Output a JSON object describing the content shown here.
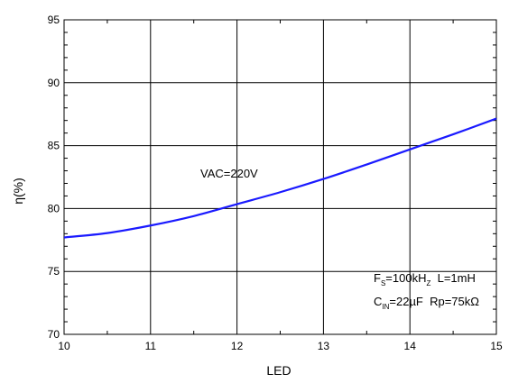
{
  "chart_data": {
    "type": "line",
    "title": "",
    "xlabel": "LED",
    "ylabel": "η(%)",
    "xlim": [
      10,
      15
    ],
    "ylim": [
      70,
      95
    ],
    "x_ticks": [
      "10",
      "11",
      "12",
      "13",
      "14",
      "15"
    ],
    "y_ticks": [
      "70",
      "75",
      "80",
      "85",
      "90",
      "95"
    ],
    "grid": true,
    "series": [
      {
        "color": "#1a1aff",
        "x": [
          10,
          10.5,
          11,
          11.5,
          12,
          12.5,
          13,
          13.5,
          14,
          14.5,
          15
        ],
        "y": [
          77.7,
          78.05,
          78.65,
          79.4,
          80.35,
          81.3,
          82.35,
          83.5,
          84.7,
          85.9,
          87.15
        ]
      }
    ],
    "annotations": {
      "vac": "VAC=220V",
      "line1": {
        "f_main": "F",
        "f_sub": "S",
        "f_eq": "=100kH",
        "f_sub2": "Z",
        "l_part": "  L=1mH"
      },
      "line2": {
        "c_main": "C",
        "c_sub": "IN",
        "c_eq": "=22µF  Rp=75kΩ"
      }
    }
  }
}
